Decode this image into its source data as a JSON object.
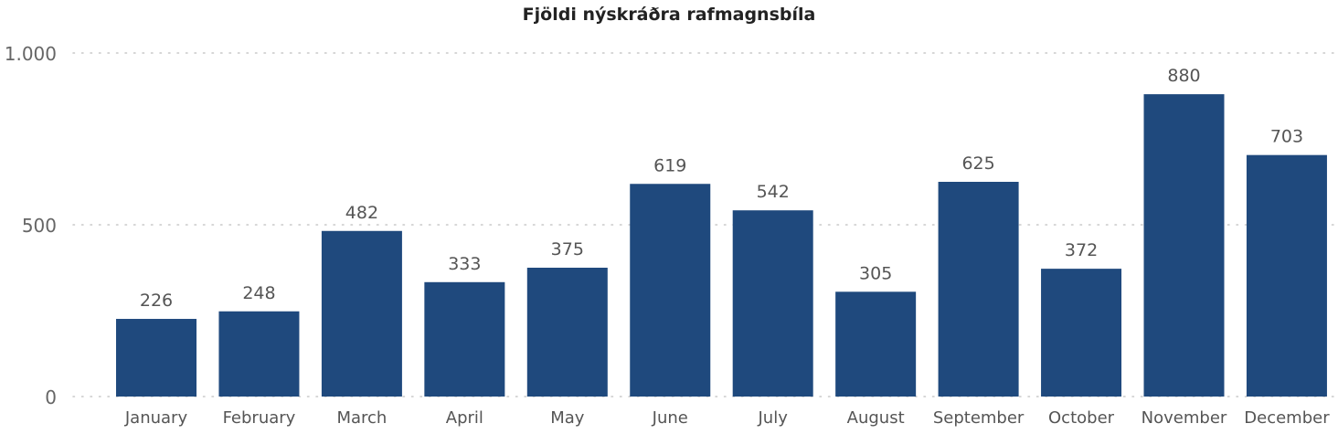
{
  "chart_data": {
    "type": "bar",
    "title": "Fjöldi nýskráðra rafmagnsbíla",
    "xlabel": "",
    "ylabel": "",
    "categories": [
      "January",
      "February",
      "March",
      "April",
      "May",
      "June",
      "July",
      "August",
      "September",
      "October",
      "November",
      "December"
    ],
    "values": [
      226,
      248,
      482,
      333,
      375,
      619,
      542,
      305,
      625,
      372,
      880,
      703
    ],
    "ylim": [
      0,
      1000
    ],
    "yticks": [
      0,
      500,
      1000
    ],
    "ytick_labels": [
      "0",
      "500",
      "1.000"
    ],
    "grid": true,
    "bar_color": "#1f497d"
  }
}
